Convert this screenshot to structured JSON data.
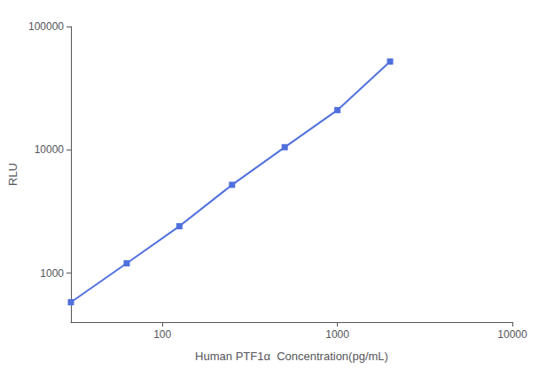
{
  "chart_data": {
    "type": "line",
    "marker": "square",
    "x": [
      30,
      62.5,
      125,
      250,
      500,
      1000,
      2000
    ],
    "values": [
      580,
      1200,
      2400,
      5200,
      10500,
      21000,
      52000
    ],
    "xlabel": "Human PTF1α  Concentration(pg/mL)",
    "ylabel": "RLU",
    "xlim": [
      30,
      10000
    ],
    "ylim": [
      400,
      100000
    ],
    "xticks": [
      100,
      1000,
      10000
    ],
    "yticks": [
      1000,
      10000,
      100000
    ],
    "log": true,
    "grid": false
  }
}
